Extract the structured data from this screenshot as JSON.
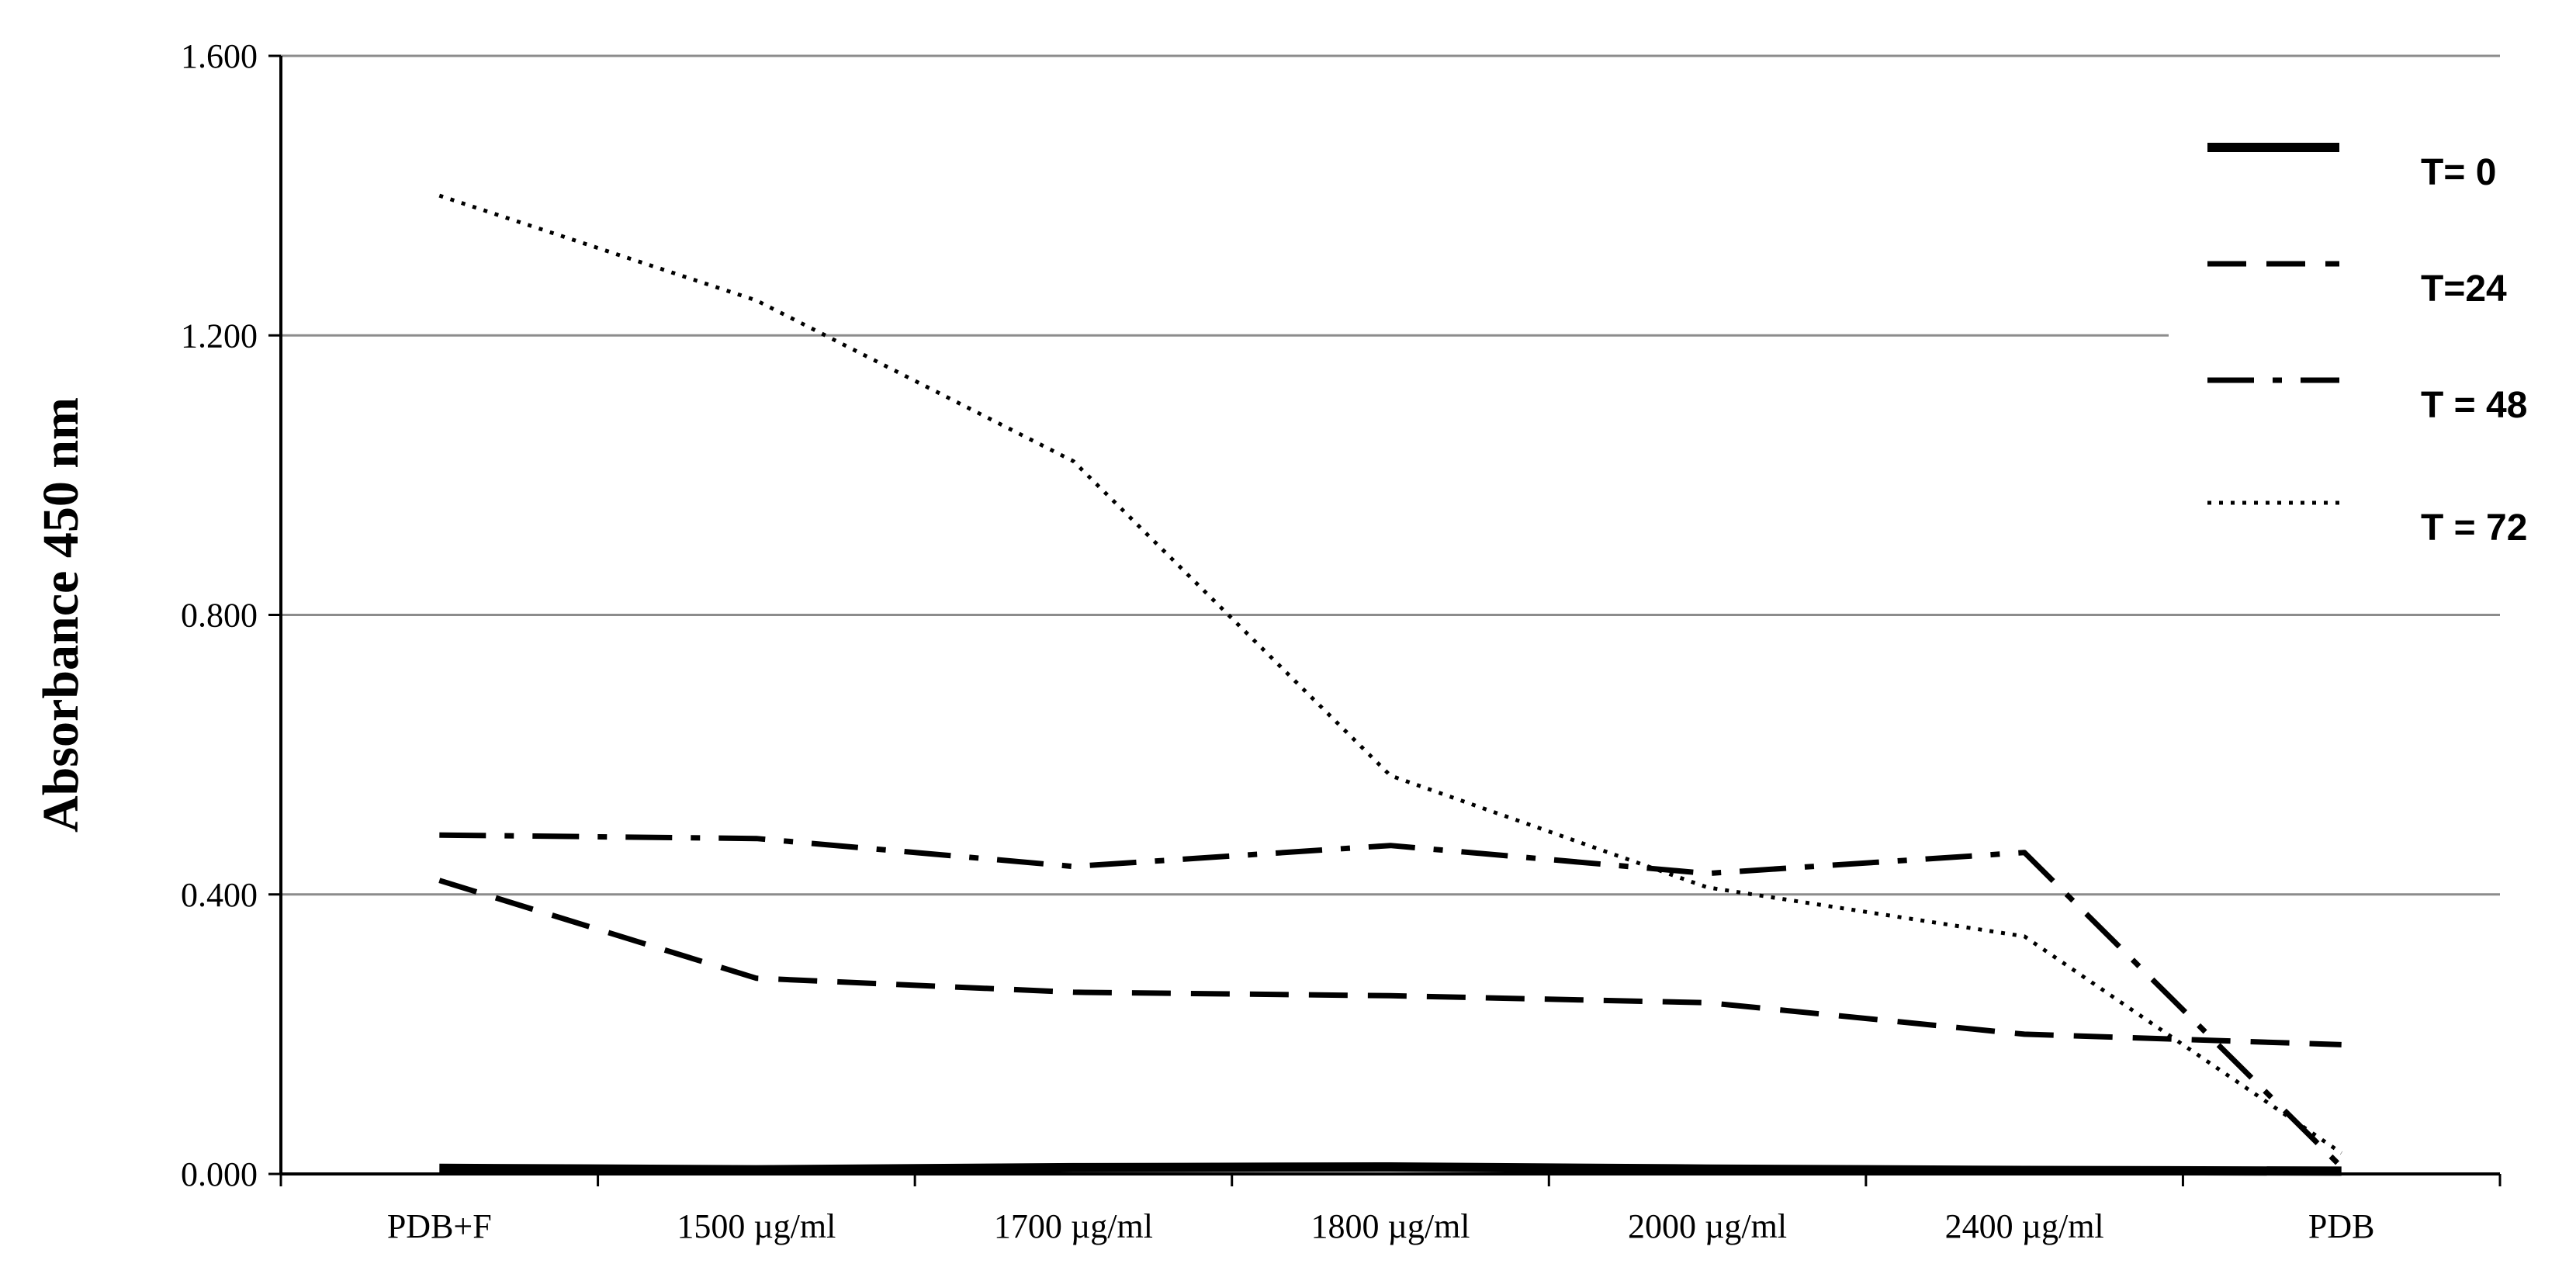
{
  "chart_data": {
    "type": "line",
    "title": "",
    "xlabel": "",
    "ylabel": "Absorbance  450 nm",
    "categories": [
      "PDB+F",
      "1500 µg/ml",
      "1700 µg/ml",
      "1800 µg/ml",
      "2000 µg/ml",
      "2400 µg/ml",
      "PDB"
    ],
    "ylim": [
      0,
      1.6
    ],
    "yticks": [
      0,
      0.4,
      0.8,
      1.2,
      1.6
    ],
    "ytick_labels": [
      "0.000",
      "0.400",
      "0.800",
      "1.200",
      "1.600"
    ],
    "grid": true,
    "legend_position": "right",
    "series": [
      {
        "name": "T= 0",
        "style": "solid",
        "values": [
          0.008,
          0.006,
          0.009,
          0.01,
          0.007,
          0.005,
          0.004
        ]
      },
      {
        "name": "T=24",
        "style": "dashed",
        "values": [
          0.42,
          0.28,
          0.26,
          0.255,
          0.245,
          0.2,
          0.185
        ]
      },
      {
        "name": "T = 48",
        "style": "dashdot",
        "values": [
          0.485,
          0.48,
          0.44,
          0.47,
          0.43,
          0.46,
          0.01
        ]
      },
      {
        "name": "T = 72",
        "style": "dotted",
        "values": [
          1.4,
          1.25,
          1.02,
          0.57,
          0.41,
          0.34,
          0.03
        ]
      }
    ]
  }
}
